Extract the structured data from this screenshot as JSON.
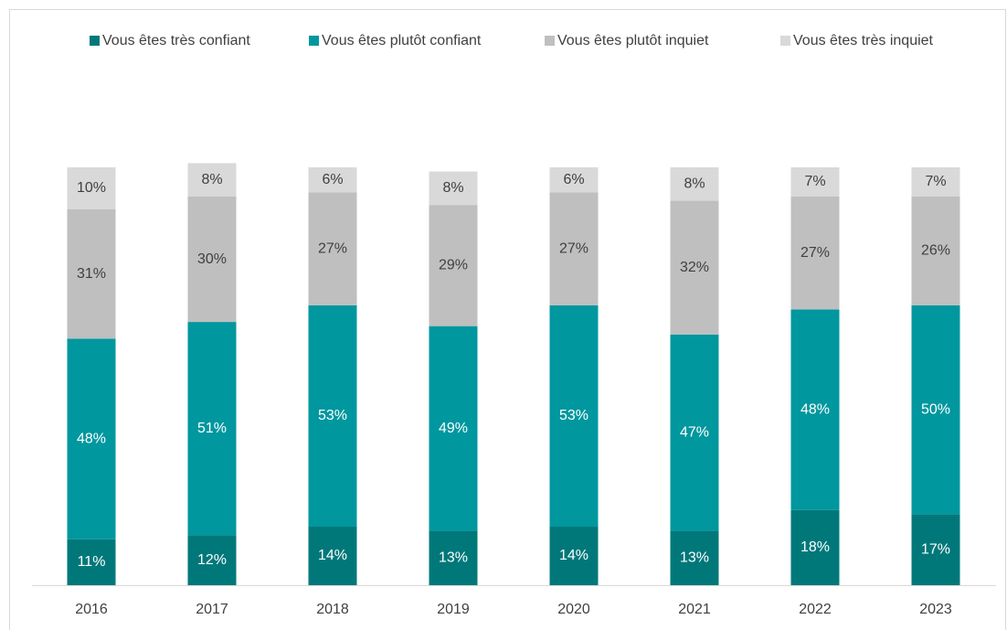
{
  "chart_data": {
    "type": "stacked_bar",
    "categories": [
      "2016",
      "2017",
      "2018",
      "2019",
      "2020",
      "2021",
      "2022",
      "2023"
    ],
    "series": [
      {
        "name": "Vous êtes très confiant",
        "color": "#00787a",
        "values": [
          11,
          12,
          14,
          13,
          14,
          13,
          18,
          17
        ],
        "value_labels": [
          "11%",
          "12%",
          "14%",
          "13%",
          "14%",
          "13%",
          "18%",
          "17%"
        ]
      },
      {
        "name": "Vous êtes plutôt confiant",
        "color": "#00979f",
        "values": [
          48,
          51,
          53,
          49,
          53,
          47,
          48,
          50
        ],
        "value_labels": [
          "48%",
          "51%",
          "53%",
          "49%",
          "53%",
          "47%",
          "48%",
          "50%"
        ]
      },
      {
        "name": "Vous êtes plutôt inquiet",
        "color": "#bfbfbf",
        "values": [
          31,
          30,
          27,
          29,
          27,
          32,
          27,
          26
        ],
        "value_labels": [
          "31%",
          "30%",
          "27%",
          "29%",
          "27%",
          "32%",
          "27%",
          "26%"
        ]
      },
      {
        "name": "Vous êtes très inquiet",
        "color": "#d9d9d9",
        "values": [
          10,
          8,
          6,
          8,
          6,
          8,
          7,
          7
        ],
        "value_labels": [
          "10%",
          "8%",
          "6%",
          "8%",
          "6%",
          "8%",
          "7%",
          "7%"
        ]
      }
    ],
    "legend": "top"
  }
}
